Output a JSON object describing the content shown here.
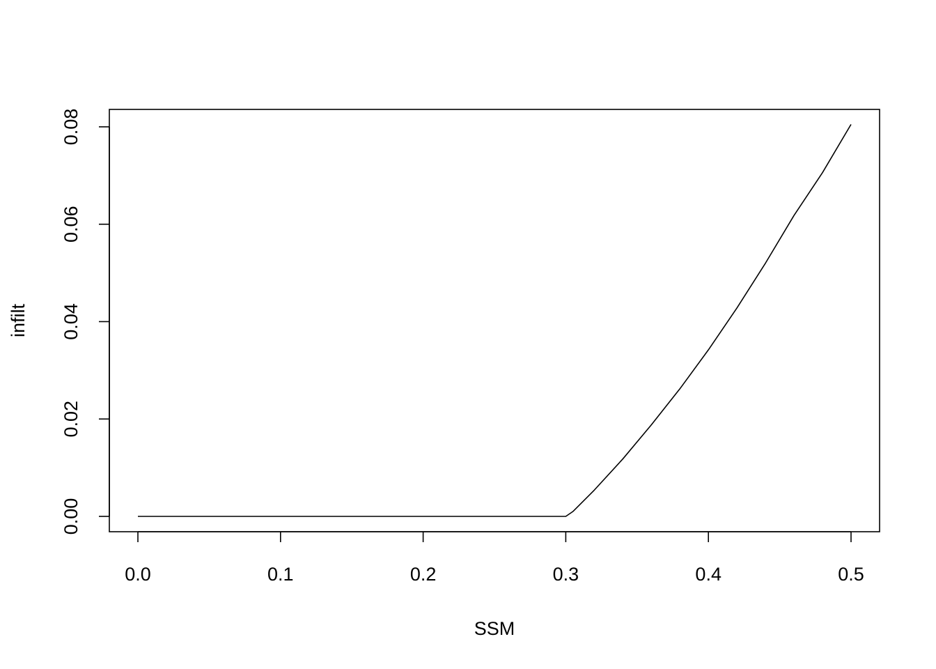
{
  "chart_data": {
    "type": "line",
    "title": "",
    "xlabel": "SSM",
    "ylabel": "infilt",
    "xlim": [
      0.0,
      0.5
    ],
    "ylim": [
      0.0,
      0.08
    ],
    "xticks": [
      "0.0",
      "0.1",
      "0.2",
      "0.3",
      "0.4",
      "0.5"
    ],
    "yticks": [
      "0.00",
      "0.02",
      "0.04",
      "0.06",
      "0.08"
    ],
    "grid": false,
    "legend": "none",
    "series": [
      {
        "x": [
          0.0,
          0.05,
          0.1,
          0.15,
          0.2,
          0.25,
          0.3,
          0.305,
          0.32,
          0.34,
          0.36,
          0.38,
          0.4,
          0.42,
          0.44,
          0.46,
          0.48,
          0.5
        ],
        "y": [
          0.0,
          0.0,
          0.0,
          0.0,
          0.0,
          0.0,
          0.0,
          0.001,
          0.0054,
          0.0118,
          0.0188,
          0.0262,
          0.0342,
          0.0428,
          0.052,
          0.0618,
          0.0706,
          0.0805
        ]
      }
    ]
  }
}
